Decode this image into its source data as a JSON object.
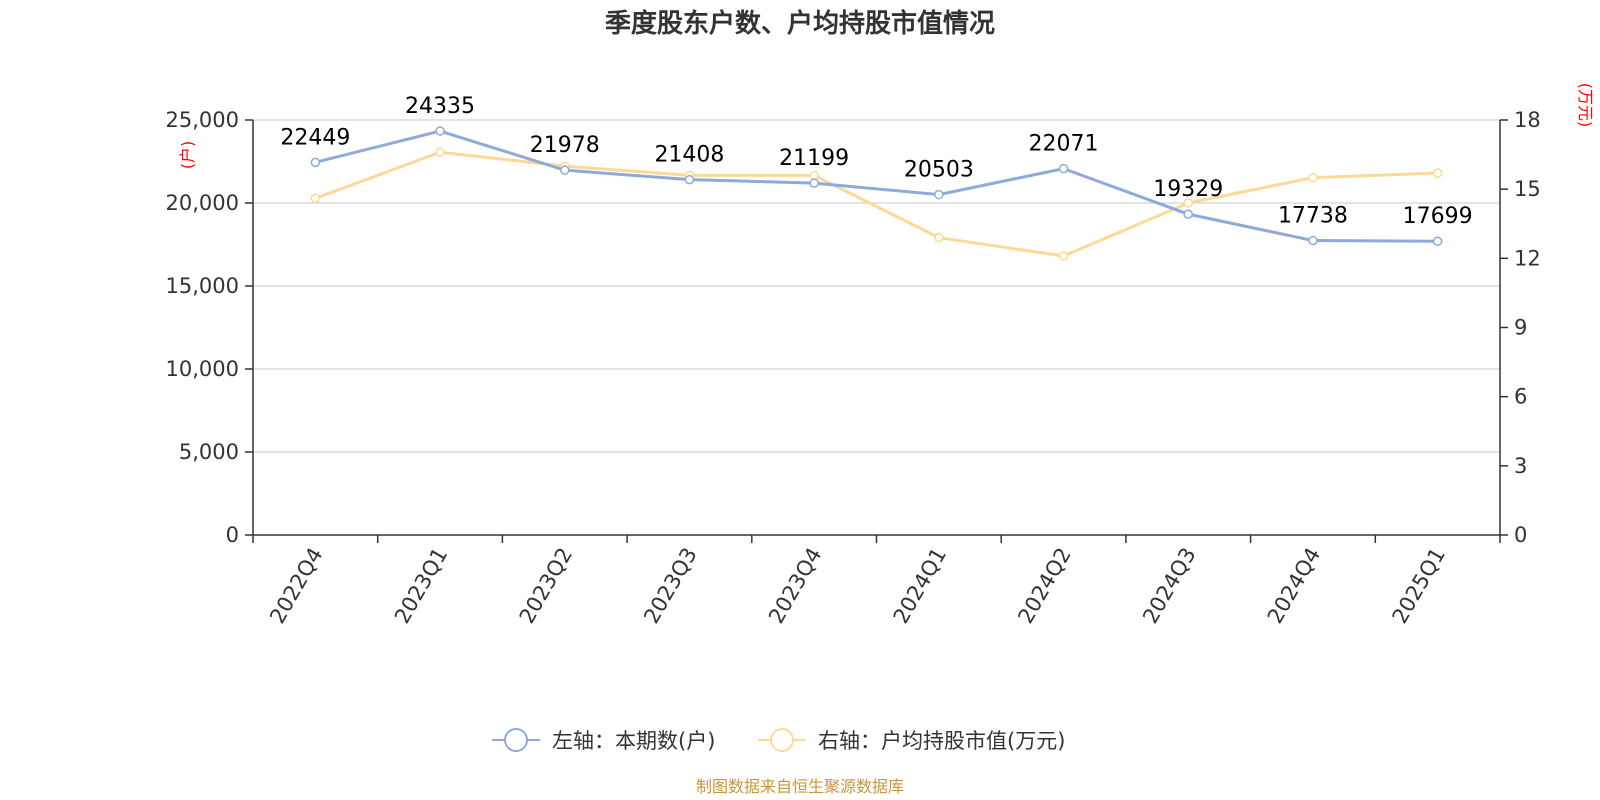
{
  "colors": {
    "series_left": "#8eaadb",
    "series_right": "#fdd998",
    "axis_unit": "#ff0000",
    "source": "#c8963c",
    "grid": "#c8c8c8"
  },
  "source_text": "制图数据来自恒生聚源数据库",
  "chart_data": {
    "type": "line",
    "title": "季度股东户数、户均持股市值情况",
    "categories": [
      "2022Q4",
      "2023Q1",
      "2023Q2",
      "2023Q3",
      "2023Q4",
      "2024Q1",
      "2024Q2",
      "2024Q3",
      "2024Q4",
      "2025Q1"
    ],
    "y_left": {
      "unit": "(户)",
      "ylim": [
        0,
        25000
      ],
      "ticks": [
        "0",
        "5,000",
        "10,000",
        "15,000",
        "20,000",
        "25,000"
      ],
      "tick_values": [
        0,
        5000,
        10000,
        15000,
        20000,
        25000
      ]
    },
    "y_right": {
      "unit": "(万元)",
      "ylim": [
        0,
        18
      ],
      "ticks": [
        "0",
        "3",
        "6",
        "9",
        "12",
        "15",
        "18"
      ],
      "tick_values": [
        0,
        3,
        6,
        9,
        12,
        15,
        18
      ]
    },
    "grid": true,
    "legend_position": "bottom",
    "series": [
      {
        "name": "左轴：本期数(户)",
        "axis": "left",
        "values": [
          22449,
          24335,
          21978,
          21408,
          21199,
          20503,
          22071,
          19329,
          17738,
          17699
        ],
        "labels": [
          "22449",
          "24335",
          "21978",
          "21408",
          "21199",
          "20503",
          "22071",
          "19329",
          "17738",
          "17699"
        ]
      },
      {
        "name": "右轴：户均持股市值(万元)",
        "axis": "right",
        "values": [
          14.6,
          16.6,
          16.0,
          15.6,
          15.6,
          12.9,
          12.1,
          14.4,
          15.5,
          15.7
        ]
      }
    ]
  }
}
